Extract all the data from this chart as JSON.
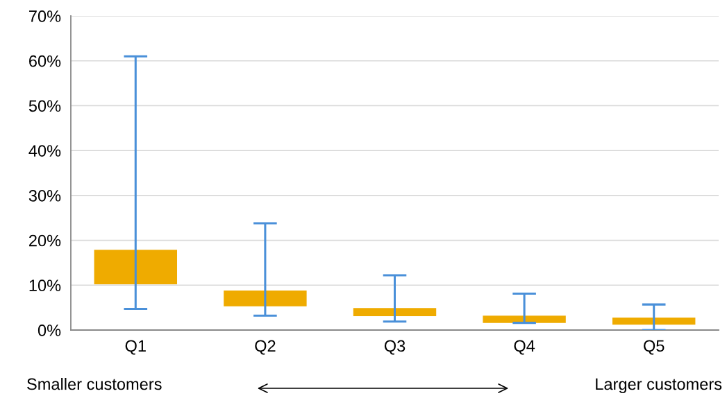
{
  "chart_data": {
    "type": "bar",
    "categories": [
      "Q1",
      "Q2",
      "Q3",
      "Q4",
      "Q5"
    ],
    "base": [
      10.2,
      5.3,
      3.1,
      1.6,
      1.2
    ],
    "values": [
      7.7,
      3.5,
      1.8,
      1.6,
      1.6
    ],
    "errors": [
      [
        4.7,
        61.0
      ],
      [
        3.2,
        23.8
      ],
      [
        1.9,
        12.2
      ],
      [
        1.6,
        8.1
      ],
      [
        0,
        5.7
      ]
    ],
    "color": "#efab00",
    "ylim": [
      0,
      70
    ],
    "yticks": [
      {
        "value": 0,
        "label": "0%"
      },
      {
        "value": 10,
        "label": "10%"
      },
      {
        "value": 20,
        "label": "20%"
      },
      {
        "value": 30,
        "label": "30%"
      },
      {
        "value": 40,
        "label": "40%"
      },
      {
        "value": 50,
        "label": "50%"
      },
      {
        "value": 60,
        "label": "60%"
      },
      {
        "value": 70,
        "label": "70%"
      }
    ],
    "grid": "y",
    "annotations": [
      "Smaller customers",
      "Larger customers"
    ]
  }
}
